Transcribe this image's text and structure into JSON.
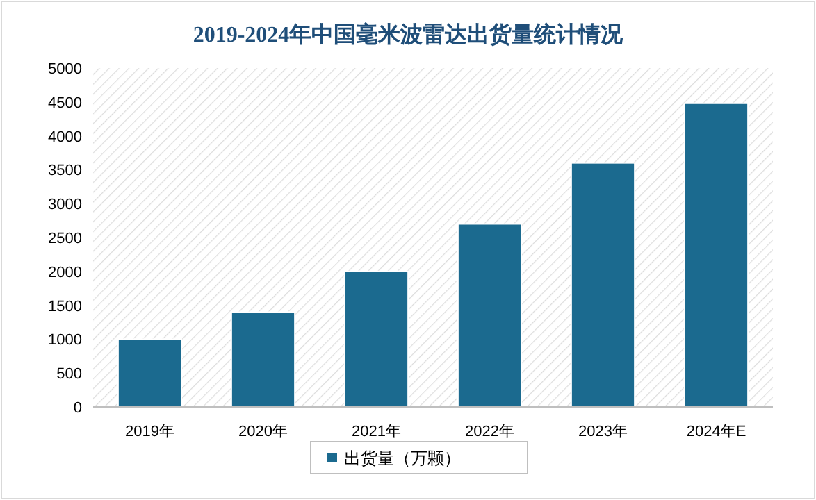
{
  "chart_data": {
    "type": "bar",
    "title": "2019-2024年中国毫米波雷达出货量统计情况",
    "categories": [
      "2019年",
      "2020年",
      "2021年",
      "2022年",
      "2023年",
      "2024年E"
    ],
    "series": [
      {
        "name": "出货量（万颗）",
        "color": "#1b6a8f",
        "values": [
          1000,
          1400,
          2000,
          2700,
          3600,
          4480
        ]
      }
    ],
    "ylim": [
      0,
      5000
    ],
    "yticks": [
      0,
      500,
      1000,
      1500,
      2000,
      2500,
      3000,
      3500,
      4000,
      4500,
      5000
    ],
    "legend": "bottom"
  }
}
